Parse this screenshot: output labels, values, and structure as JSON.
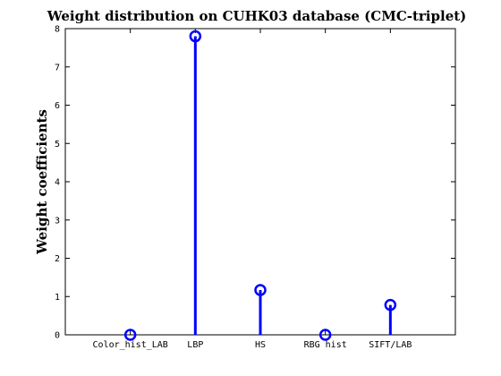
{
  "chart_data": {
    "type": "stem",
    "title": "Weight distribution on CUHK03 database (CMC-triplet)",
    "xlabel": "",
    "ylabel": "Weight coefficients",
    "categories": [
      "Color_hist_LAB",
      "LBP",
      "HS",
      "RBG hist",
      "SIFT/LAB"
    ],
    "values": [
      0.0,
      7.8,
      1.17,
      0.0,
      0.78
    ],
    "ylim": [
      0,
      8
    ],
    "yticks": [
      0,
      1,
      2,
      3,
      4,
      5,
      6,
      7,
      8
    ],
    "xlim": [
      0,
      6
    ],
    "x_positions": [
      1,
      2,
      3,
      4,
      5
    ],
    "grid": false,
    "color": "#0000ff",
    "marker": "circle"
  }
}
